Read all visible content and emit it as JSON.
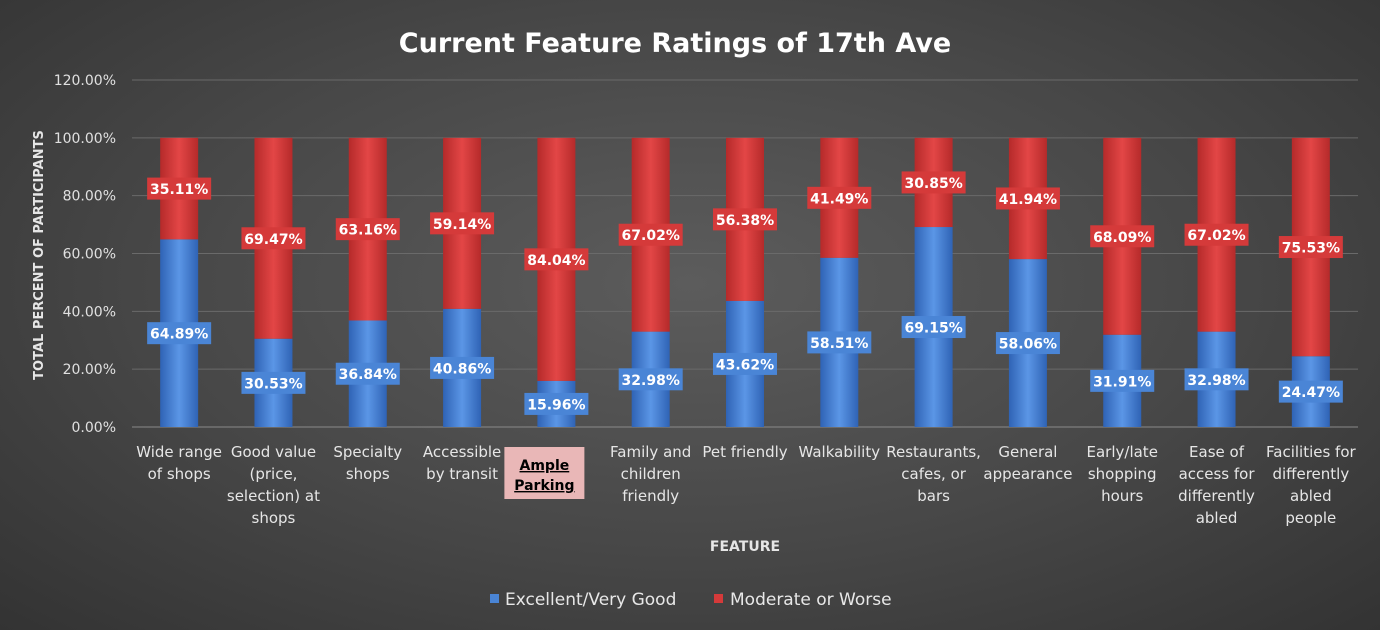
{
  "chart_data": {
    "type": "bar",
    "stacked": true,
    "title": "Current Feature Ratings of 17th Ave",
    "xlabel": "FEATURE",
    "ylabel": "TOTAL PERCENT OF PARTICIPANTS",
    "ylim": [
      0,
      120
    ],
    "yticks": [
      "0.00%",
      "20.00%",
      "40.00%",
      "60.00%",
      "80.00%",
      "100.00%",
      "120.00%"
    ],
    "grid": true,
    "legend_position": "bottom",
    "categories": [
      [
        "Wide range",
        "of shops"
      ],
      [
        "Good value",
        "(price,",
        "selection) at",
        "shops"
      ],
      [
        "Specialty",
        "shops"
      ],
      [
        "Accessible",
        "by transit"
      ],
      [
        "Ample",
        "Parking"
      ],
      [
        "Family and",
        "children",
        "friendly"
      ],
      [
        "Pet friendly"
      ],
      [
        "Walkability"
      ],
      [
        "Restaurants,",
        "cafes, or",
        "bars"
      ],
      [
        "General",
        "appearance"
      ],
      [
        "Early/late",
        "shopping",
        "hours"
      ],
      [
        "Ease of",
        "access for",
        "differently",
        "abled"
      ],
      [
        "Facilities for",
        "differently",
        "abled",
        "people"
      ]
    ],
    "highlighted_category": 4,
    "series": [
      {
        "name": "Excellent/Very Good",
        "color": "#4a85d6",
        "values": [
          64.89,
          30.53,
          36.84,
          40.86,
          15.96,
          32.98,
          43.62,
          58.51,
          69.15,
          58.06,
          31.91,
          32.98,
          24.47
        ],
        "labels": [
          "64.89%",
          "30.53%",
          "36.84%",
          "40.86%",
          "15.96%",
          "32.98%",
          "43.62%",
          "58.51%",
          "69.15%",
          "58.06%",
          "31.91%",
          "32.98%",
          "24.47%"
        ]
      },
      {
        "name": "Moderate or Worse",
        "color": "#d53a3a",
        "values": [
          35.11,
          69.47,
          63.16,
          59.14,
          84.04,
          67.02,
          56.38,
          41.49,
          30.85,
          41.94,
          68.09,
          67.02,
          75.53
        ],
        "labels": [
          "35.11%",
          "69.47%",
          "63.16%",
          "59.14%",
          "84.04%",
          "67.02%",
          "56.38%",
          "41.49%",
          "30.85%",
          "41.94%",
          "68.09%",
          "67.02%",
          "75.53%"
        ]
      }
    ]
  }
}
